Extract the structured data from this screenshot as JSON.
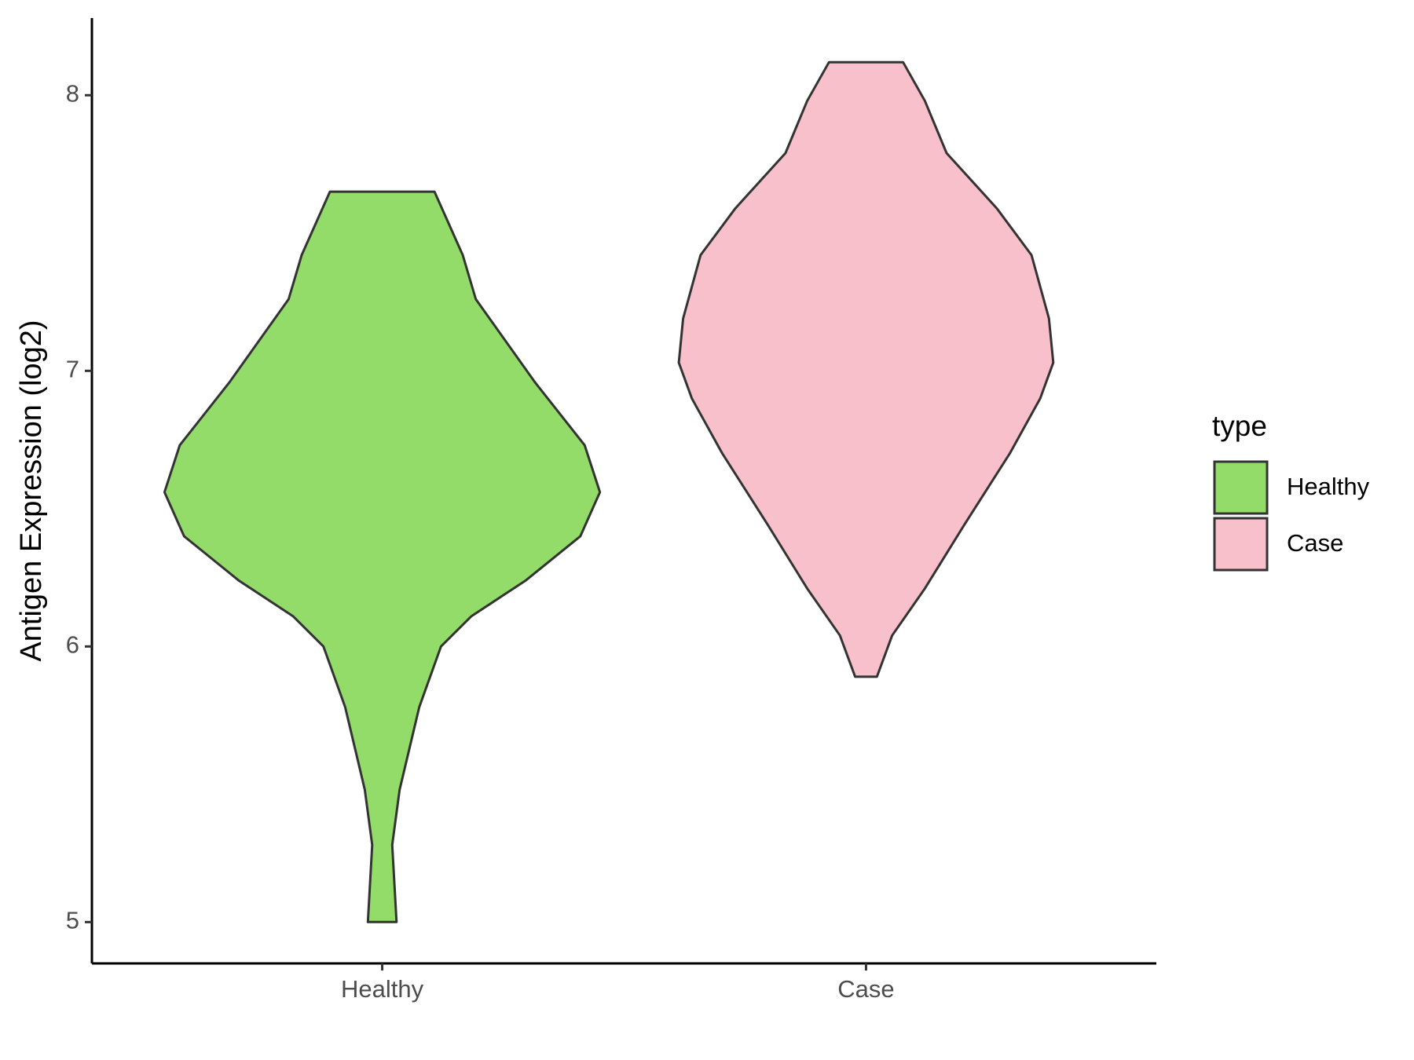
{
  "chart_data": {
    "type": "violin",
    "y_label": "Antigen Expression (log2)",
    "categories": [
      "Healthy",
      "Case"
    ],
    "legend_title": "type",
    "legend": "right",
    "ylim": [
      4.85,
      8.28
    ],
    "yticks": [
      5,
      6,
      7,
      8
    ],
    "series": [
      {
        "name": "Healthy",
        "color": "#93dc6a",
        "y": [
          5.0,
          5.28,
          5.48,
          5.78,
          6.0,
          6.11,
          6.24,
          6.4,
          6.56,
          6.73,
          6.96,
          7.26,
          7.42,
          7.65
        ],
        "density": [
          0.066,
          0.046,
          0.08,
          0.17,
          0.27,
          0.41,
          0.66,
          0.91,
          1.0,
          0.93,
          0.7,
          0.43,
          0.37,
          0.24
        ]
      },
      {
        "name": "Case",
        "color": "#f8c0cb",
        "y": [
          5.89,
          6.04,
          6.21,
          6.44,
          6.7,
          6.9,
          7.03,
          7.19,
          7.42,
          7.59,
          7.79,
          7.98,
          8.12
        ],
        "density": [
          0.05,
          0.12,
          0.27,
          0.45,
          0.66,
          0.8,
          0.86,
          0.84,
          0.76,
          0.6,
          0.37,
          0.27,
          0.17
        ]
      }
    ]
  }
}
